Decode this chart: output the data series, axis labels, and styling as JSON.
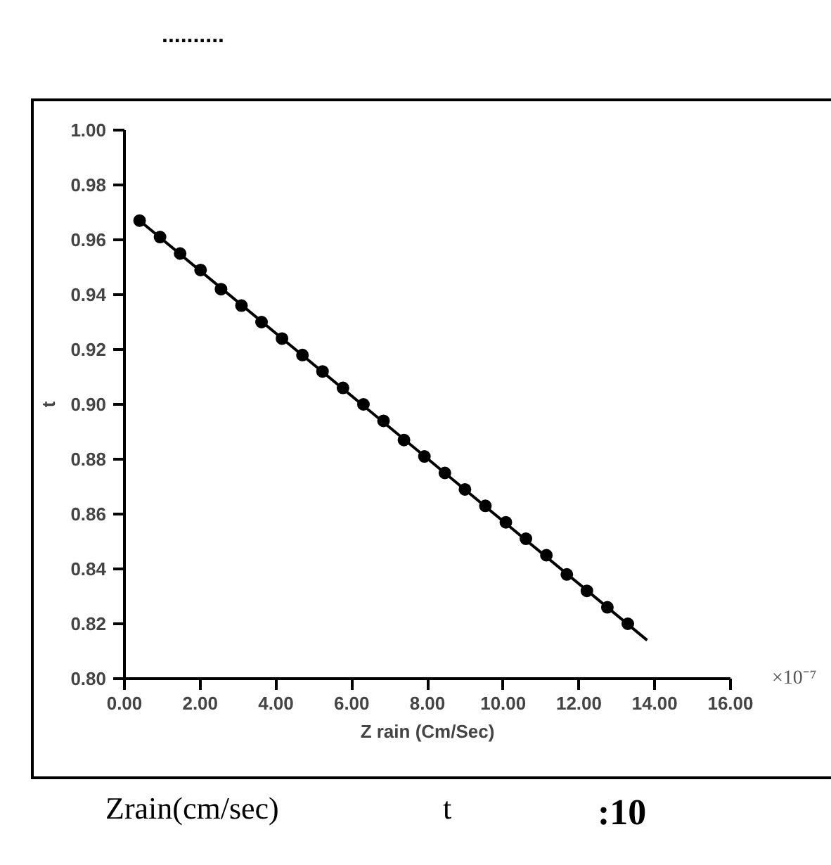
{
  "chart_data": {
    "type": "scatter",
    "title": "..........",
    "xlabel": "Z rain (Cm/Sec)",
    "ylabel": "t",
    "xlim": [
      0,
      16
    ],
    "xticks": [
      {
        "value": 0,
        "label": "0.00"
      },
      {
        "value": 2,
        "label": "2.00"
      },
      {
        "value": 4,
        "label": "4.00"
      },
      {
        "value": 6,
        "label": "6.00"
      },
      {
        "value": 8,
        "label": "8.00"
      },
      {
        "value": 10,
        "label": "10.00"
      },
      {
        "value": 12,
        "label": "12.00"
      },
      {
        "value": 14,
        "label": "14.00"
      },
      {
        "value": 16,
        "label": "16.00"
      }
    ],
    "ylim": [
      0.8,
      1.0
    ],
    "yticks": [
      {
        "value": 0.8,
        "label": "0.80"
      },
      {
        "value": 0.82,
        "label": "0.82"
      },
      {
        "value": 0.84,
        "label": "0.84"
      },
      {
        "value": 0.86,
        "label": "0.86"
      },
      {
        "value": 0.88,
        "label": "0.88"
      },
      {
        "value": 0.9,
        "label": "0.90"
      },
      {
        "value": 0.92,
        "label": "0.92"
      },
      {
        "value": 0.94,
        "label": "0.94"
      },
      {
        "value": 0.96,
        "label": "0.96"
      },
      {
        "value": 0.98,
        "label": "0.98"
      },
      {
        "value": 1.0,
        "label": "1.00"
      }
    ],
    "grid": false,
    "series": [
      {
        "marker": "circle",
        "color": "#000000",
        "x": [
          0.4,
          0.94,
          1.47,
          2.01,
          2.55,
          3.09,
          3.62,
          4.16,
          4.7,
          5.23,
          5.77,
          6.31,
          6.84,
          7.38,
          7.92,
          8.46,
          8.99,
          9.53,
          10.07,
          10.6,
          11.14,
          11.68,
          12.21,
          12.75,
          13.29
        ],
        "values": [
          0.967,
          0.961,
          0.955,
          0.949,
          0.942,
          0.936,
          0.93,
          0.924,
          0.918,
          0.912,
          0.906,
          0.9,
          0.894,
          0.887,
          0.881,
          0.875,
          0.869,
          0.863,
          0.857,
          0.851,
          0.845,
          0.838,
          0.832,
          0.826,
          0.82
        ]
      },
      {
        "type": "line",
        "marker": "none",
        "line_style": "solid",
        "color": "#000000",
        "x": [
          0.4,
          13.8
        ],
        "values": [
          0.967,
          0.814
        ]
      }
    ],
    "annotations": [
      "×10⁻⁷",
      "Zrain(cm/sec)",
      "t",
      ":10"
    ]
  }
}
